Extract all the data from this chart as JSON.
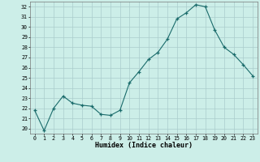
{
  "x": [
    0,
    1,
    2,
    3,
    4,
    5,
    6,
    7,
    8,
    9,
    10,
    11,
    12,
    13,
    14,
    15,
    16,
    17,
    18,
    19,
    20,
    21,
    22,
    23
  ],
  "y": [
    21.8,
    19.8,
    22.0,
    23.2,
    22.5,
    22.3,
    22.2,
    21.4,
    21.3,
    21.8,
    24.5,
    25.6,
    26.8,
    27.5,
    28.8,
    30.8,
    31.4,
    32.2,
    32.0,
    29.7,
    28.0,
    27.3,
    26.3,
    25.2
  ],
  "xlabel": "Humidex (Indice chaleur)",
  "bg_color": "#cceee8",
  "grid_color": "#aacccc",
  "line_color": "#1a6b6b",
  "marker_color": "#1a6b6b",
  "ylim": [
    19.5,
    32.5
  ],
  "xlim": [
    -0.5,
    23.5
  ],
  "yticks": [
    20,
    21,
    22,
    23,
    24,
    25,
    26,
    27,
    28,
    29,
    30,
    31,
    32
  ],
  "xticks": [
    0,
    1,
    2,
    3,
    4,
    5,
    6,
    7,
    8,
    9,
    10,
    11,
    12,
    13,
    14,
    15,
    16,
    17,
    18,
    19,
    20,
    21,
    22,
    23
  ]
}
